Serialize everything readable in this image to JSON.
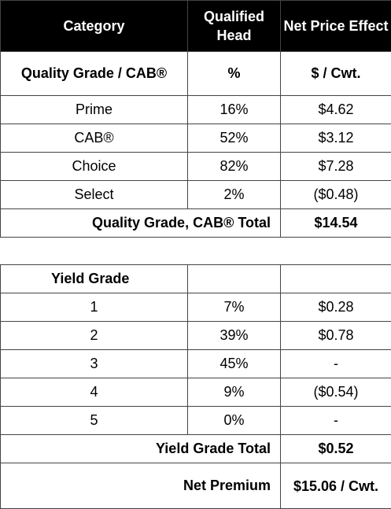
{
  "header": {
    "category": "Category",
    "qualified_head": "Qualified Head",
    "net_price_effect": "Net Price Effect"
  },
  "quality": {
    "label": "Quality Grade / CAB®",
    "unit_head": "%",
    "unit_price": "$ / Cwt.",
    "rows": [
      {
        "name": "Prime",
        "pct": "16%",
        "effect": "$4.62"
      },
      {
        "name": "CAB®",
        "pct": "52%",
        "effect": "$3.12"
      },
      {
        "name": "Choice",
        "pct": "82%",
        "effect": "$7.28"
      },
      {
        "name": "Select",
        "pct": "2%",
        "effect": "($0.48)"
      }
    ],
    "total_label": "Quality Grade, CAB® Total",
    "total_value": "$14.54"
  },
  "yield": {
    "label": "Yield Grade",
    "rows": [
      {
        "name": "1",
        "pct": "7%",
        "effect": "$0.28"
      },
      {
        "name": "2",
        "pct": "39%",
        "effect": "$0.78"
      },
      {
        "name": "3",
        "pct": "45%",
        "effect": "-"
      },
      {
        "name": "4",
        "pct": "9%",
        "effect": "($0.54)"
      },
      {
        "name": "5",
        "pct": "0%",
        "effect": "-"
      }
    ],
    "total_label": "Yield Grade Total",
    "total_value": "$0.52"
  },
  "net": {
    "label": "Net Premium",
    "value": "$15.06 / Cwt."
  }
}
